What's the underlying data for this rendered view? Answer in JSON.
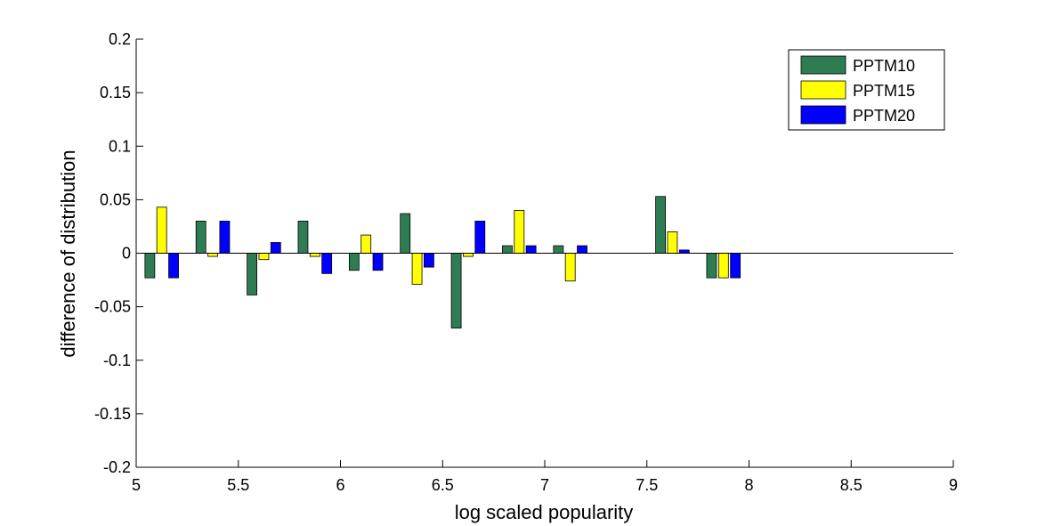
{
  "chart_data": {
    "type": "bar",
    "xlabel": "log scaled popularity",
    "ylabel": "difference of distribution",
    "xlim": [
      5,
      9
    ],
    "ylim": [
      -0.2,
      0.2
    ],
    "x_ticks": [
      "5",
      "5.5",
      "6",
      "6.5",
      "7",
      "7.5",
      "8",
      "8.5",
      "9"
    ],
    "y_ticks": [
      "-0.2",
      "-0.15",
      "-0.1",
      "-0.05",
      "0",
      "0.05",
      "0.1",
      "0.15",
      "0.2"
    ],
    "x": [
      5.125,
      5.375,
      5.625,
      5.875,
      6.125,
      6.375,
      6.625,
      6.875,
      7.125,
      7.375,
      7.625,
      7.875
    ],
    "series": [
      {
        "name": "PPTM10",
        "color": "#2e7d52",
        "values": [
          -0.023,
          0.03,
          -0.039,
          0.03,
          -0.016,
          0.037,
          -0.07,
          0.007,
          0.007,
          0.0,
          0.053,
          -0.023
        ]
      },
      {
        "name": "PPTM15",
        "color": "#ffff00",
        "values": [
          0.043,
          -0.003,
          -0.006,
          -0.003,
          0.017,
          -0.029,
          -0.003,
          0.04,
          -0.026,
          0.0,
          0.02,
          -0.023
        ]
      },
      {
        "name": "PPTM20",
        "color": "#0000ff",
        "values": [
          -0.023,
          0.03,
          0.01,
          -0.019,
          -0.016,
          -0.013,
          0.03,
          0.007,
          0.007,
          0.0,
          0.003,
          -0.023
        ]
      }
    ],
    "legend_position": "top-right",
    "grid": false
  }
}
